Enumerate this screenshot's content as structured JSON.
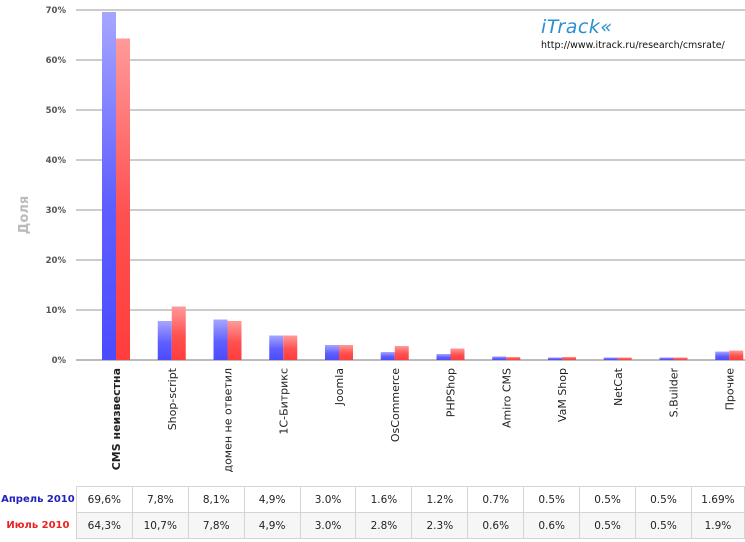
{
  "brand": {
    "logo": "iTrack",
    "url": "http://www.itrack.ru/research/cmsrate/"
  },
  "colors": {
    "april": "#4b4bff",
    "july": "#ff3d3d",
    "grid": "#999999"
  },
  "chart_data": {
    "type": "bar",
    "title": "",
    "xlabel": "",
    "ylabel": "Доля",
    "ylim": [
      0,
      70
    ],
    "yticks": [
      "0%",
      "10%",
      "20%",
      "30%",
      "40%",
      "50%",
      "60%",
      "70%"
    ],
    "grid": true,
    "categories": [
      "CMS неизвестна",
      "Shop-script",
      "домен не ответил",
      "1С-Битрикс",
      "Joomla",
      "OsCommerce",
      "PHPShop",
      "Amiro CMS",
      "VaM Shop",
      "NetCat",
      "S.Builder",
      "Прочие"
    ],
    "series": [
      {
        "name": "Апрель 2010",
        "values": [
          69.6,
          7.8,
          8.1,
          4.9,
          3.0,
          1.6,
          1.2,
          0.7,
          0.5,
          0.5,
          0.5,
          1.69
        ],
        "labels": [
          "69,6%",
          "7,8%",
          "8,1%",
          "4,9%",
          "3.0%",
          "1.6%",
          "1.2%",
          "0.7%",
          "0.5%",
          "0.5%",
          "0.5%",
          "1.69%"
        ]
      },
      {
        "name": "Июль 2010",
        "values": [
          64.3,
          10.7,
          7.8,
          4.9,
          3.0,
          2.8,
          2.3,
          0.6,
          0.6,
          0.5,
          0.5,
          1.9
        ],
        "labels": [
          "64,3%",
          "10,7%",
          "7,8%",
          "4,9%",
          "3.0%",
          "2.8%",
          "2.3%",
          "0.6%",
          "0.6%",
          "0.5%",
          "0.5%",
          "1.9%"
        ]
      }
    ]
  }
}
